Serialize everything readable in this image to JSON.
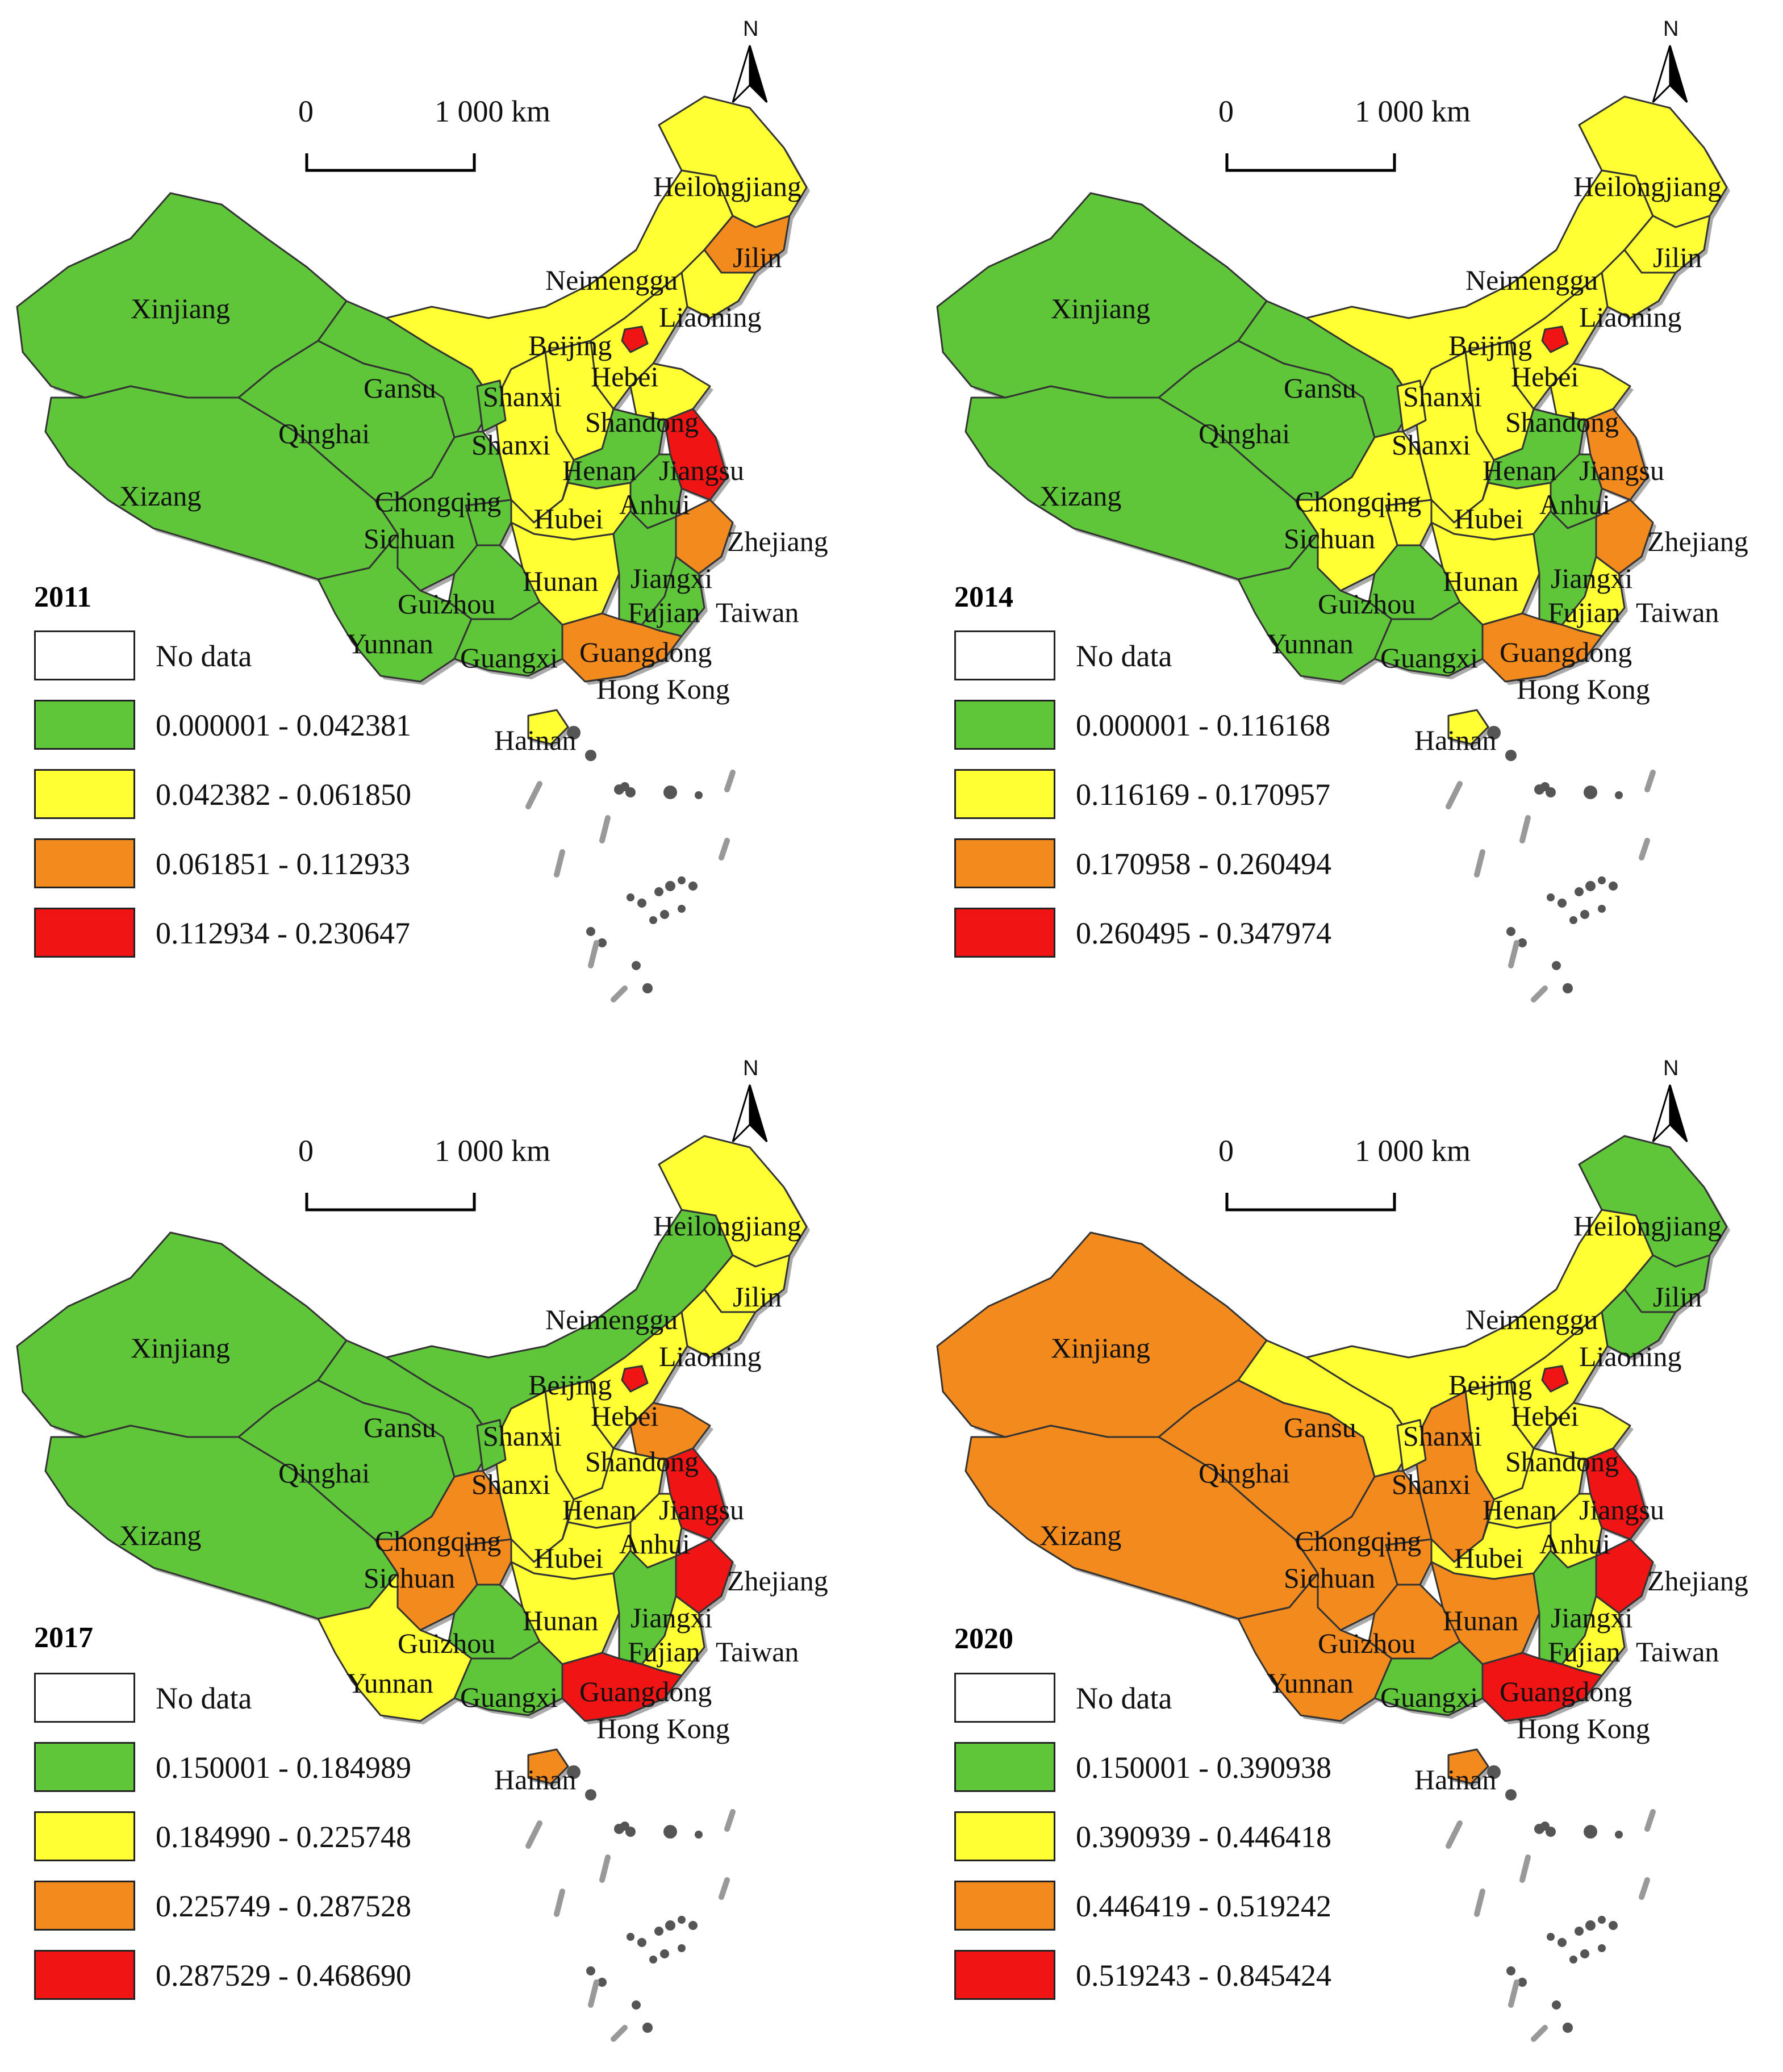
{
  "colors": {
    "no_data": "#ffffff",
    "class1": "#5fc63a",
    "class2": "#ffff33",
    "class3": "#f28a1d",
    "class4": "#f01414",
    "boundary": "#333333",
    "coast_shadow": "#aaaaaa"
  },
  "scale": {
    "zero": "0",
    "distance": "1 000 km"
  },
  "north": "N",
  "legend_no_data": "No data",
  "province_labels": [
    "Xinjiang",
    "Xizang",
    "Qinghai",
    "Gansu",
    "Neimenggu",
    "Heilongjiang",
    "Jilin",
    "Liaoning",
    "Beijing",
    "Hebei",
    "Shanxi",
    "Shandong",
    "Shanxi",
    "Henan",
    "Jiangsu",
    "Anhui",
    "Zhejiang",
    "Hubei",
    "Chongqing",
    "Sichuan",
    "Hunan",
    "Jiangxi",
    "Guizhou",
    "Yunnan",
    "Guangxi",
    "Guangdong",
    "Fujian",
    "Taiwan",
    "Hong Kong",
    "Hainan"
  ],
  "panels": [
    {
      "year": "2011",
      "legend": [
        "0.000001 - 0.042381",
        "0.042382 - 0.061850",
        "0.061851 - 0.112933",
        "0.112934 - 0.230647"
      ],
      "fill": {
        "xinjiang": 1,
        "xizang": 1,
        "qinghai": 1,
        "gansu": 1,
        "neimenggu": 2,
        "heilongjiang": 2,
        "jilin": 3,
        "liaoning": 2,
        "beijing": 4,
        "hebei": 2,
        "shanxi": 2,
        "shaanxi": 2,
        "ningxia": 1,
        "shandong": 2,
        "henan": 1,
        "jiangsu": 4,
        "anhui": 1,
        "zhejiang": 3,
        "hubei": 2,
        "chongqing": 1,
        "sichuan": 1,
        "hunan": 2,
        "jiangxi": 1,
        "guizhou": 1,
        "yunnan": 1,
        "guangxi": 1,
        "guangdong": 3,
        "fujian": 1,
        "hainan": 2
      }
    },
    {
      "year": "2014",
      "legend": [
        "0.000001 - 0.116168",
        "0.116169 - 0.170957",
        "0.170958 - 0.260494",
        "0.260495 - 0.347974"
      ],
      "fill": {
        "xinjiang": 1,
        "xizang": 1,
        "qinghai": 1,
        "gansu": 1,
        "neimenggu": 2,
        "heilongjiang": 2,
        "jilin": 2,
        "liaoning": 2,
        "beijing": 4,
        "hebei": 2,
        "shanxi": 2,
        "shaanxi": 2,
        "ningxia": 2,
        "shandong": 2,
        "henan": 1,
        "jiangsu": 3,
        "anhui": 1,
        "zhejiang": 3,
        "hubei": 2,
        "chongqing": 2,
        "sichuan": 2,
        "hunan": 2,
        "jiangxi": 1,
        "guizhou": 1,
        "yunnan": 1,
        "guangxi": 1,
        "guangdong": 3,
        "fujian": 2,
        "hainan": 2
      }
    },
    {
      "year": "2017",
      "legend": [
        "0.150001 - 0.184989",
        "0.184990 - 0.225748",
        "0.225749 - 0.287528",
        "0.287529 - 0.468690"
      ],
      "fill": {
        "xinjiang": 1,
        "xizang": 1,
        "qinghai": 1,
        "gansu": 1,
        "neimenggu": 1,
        "heilongjiang": 2,
        "jilin": 2,
        "liaoning": 2,
        "beijing": 4,
        "hebei": 2,
        "shanxi": 2,
        "shaanxi": 2,
        "ningxia": 1,
        "shandong": 3,
        "henan": 2,
        "jiangsu": 4,
        "anhui": 2,
        "zhejiang": 4,
        "hubei": 2,
        "chongqing": 3,
        "sichuan": 3,
        "hunan": 2,
        "jiangxi": 1,
        "guizhou": 1,
        "yunnan": 2,
        "guangxi": 1,
        "guangdong": 4,
        "fujian": 2,
        "hainan": 3
      }
    },
    {
      "year": "2020",
      "legend": [
        "0.150001 - 0.390938",
        "0.390939 - 0.446418",
        "0.446419 - 0.519242",
        "0.519243 - 0.845424"
      ],
      "fill": {
        "xinjiang": 3,
        "xizang": 3,
        "qinghai": 3,
        "gansu": 2,
        "neimenggu": 2,
        "heilongjiang": 1,
        "jilin": 1,
        "liaoning": 1,
        "beijing": 4,
        "hebei": 2,
        "shanxi": 2,
        "shaanxi": 3,
        "ningxia": 2,
        "shandong": 2,
        "henan": 2,
        "jiangsu": 4,
        "anhui": 2,
        "zhejiang": 4,
        "hubei": 2,
        "chongqing": 3,
        "sichuan": 3,
        "hunan": 3,
        "jiangxi": 1,
        "guizhou": 3,
        "yunnan": 3,
        "guangxi": 1,
        "guangdong": 4,
        "fujian": 2,
        "hainan": 3
      }
    }
  ]
}
